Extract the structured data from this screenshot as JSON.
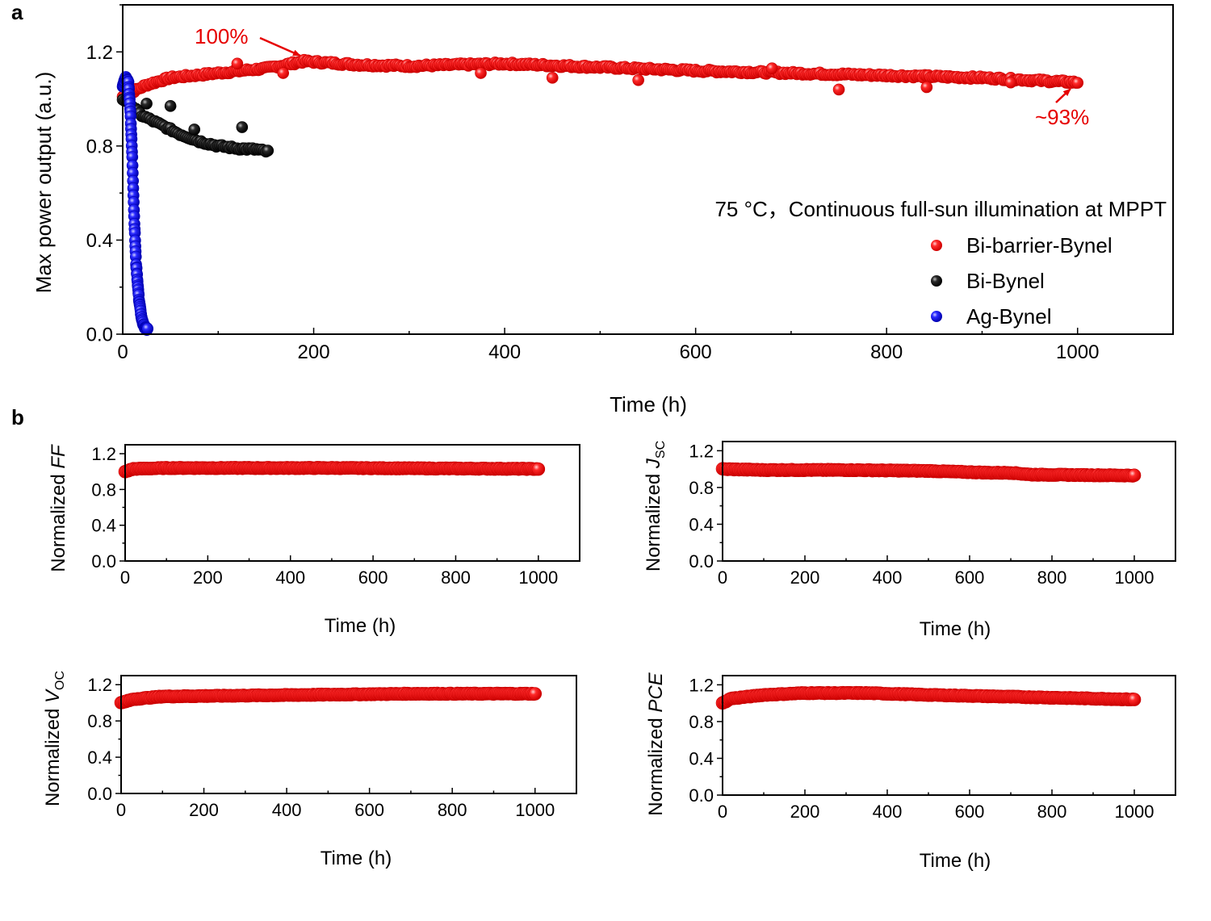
{
  "panel_labels": {
    "a": "a",
    "b": "b"
  },
  "colors": {
    "red": "#ff1a1a",
    "red_edge": "#c80000",
    "black": "#222222",
    "black_edge": "#000000",
    "blue": "#2a2af0",
    "blue_edge": "#0000b4",
    "annotation": "#e60000"
  },
  "chart_data": [
    {
      "id": "a",
      "type": "scatter",
      "xlabel": "Time (h)",
      "ylabel": "Max power output (a.u.)",
      "xlim": [
        0,
        1100
      ],
      "ylim": [
        0,
        1.4
      ],
      "xticks": [
        0,
        200,
        400,
        600,
        800,
        1000
      ],
      "yticks": [
        0.0,
        0.4,
        0.8,
        1.2
      ],
      "xtick_labels": [
        "0",
        "200",
        "400",
        "600",
        "800",
        "1000"
      ],
      "ytick_labels": [
        "0.0",
        "0.4",
        "0.8",
        "1.2"
      ],
      "condition_text": "75 °C，Continuous full-sun illumination at MPPT",
      "annotations": [
        {
          "text": "100%",
          "points_to": [
            190,
            1.16
          ]
        },
        {
          "text": "~93%",
          "points_to": [
            1000,
            1.07
          ]
        }
      ],
      "series": [
        {
          "name": "Bi-barrier-Bynel",
          "color": "red",
          "trend": [
            [
              0,
              1.01
            ],
            [
              10,
              1.03
            ],
            [
              25,
              1.06
            ],
            [
              50,
              1.09
            ],
            [
              100,
              1.11
            ],
            [
              150,
              1.13
            ],
            [
              190,
              1.16
            ],
            [
              250,
              1.145
            ],
            [
              300,
              1.14
            ],
            [
              400,
              1.15
            ],
            [
              500,
              1.135
            ],
            [
              600,
              1.12
            ],
            [
              700,
              1.11
            ],
            [
              800,
              1.1
            ],
            [
              900,
              1.09
            ],
            [
              1000,
              1.07
            ]
          ],
          "outliers": [
            [
              168,
              1.11
            ],
            [
              375,
              1.11
            ],
            [
              450,
              1.09
            ],
            [
              540,
              1.08
            ],
            [
              750,
              1.04
            ],
            [
              842,
              1.05
            ],
            [
              930,
              1.07
            ],
            [
              120,
              1.15
            ],
            [
              680,
              1.13
            ]
          ]
        },
        {
          "name": "Bi-Bynel",
          "color": "black",
          "trend": [
            [
              0,
              1.0
            ],
            [
              10,
              0.97
            ],
            [
              20,
              0.93
            ],
            [
              40,
              0.89
            ],
            [
              60,
              0.85
            ],
            [
              80,
              0.82
            ],
            [
              100,
              0.8
            ],
            [
              120,
              0.79
            ],
            [
              140,
              0.785
            ],
            [
              153,
              0.775
            ]
          ],
          "outliers": [
            [
              25,
              0.98
            ],
            [
              50,
              0.97
            ],
            [
              125,
              0.88
            ],
            [
              75,
              0.87
            ]
          ]
        },
        {
          "name": "Ag-Bynel",
          "color": "blue",
          "trend": [
            [
              0,
              1.05
            ],
            [
              3,
              1.09
            ],
            [
              6,
              1.07
            ],
            [
              8,
              0.95
            ],
            [
              10,
              0.75
            ],
            [
              12,
              0.5
            ],
            [
              14,
              0.3
            ],
            [
              17,
              0.15
            ],
            [
              20,
              0.06
            ],
            [
              23,
              0.03
            ],
            [
              26,
              0.02
            ]
          ],
          "outliers": []
        }
      ]
    },
    {
      "id": "b1",
      "type": "scatter",
      "xlabel": "Time (h)",
      "ylabel_prefix": "Normalized ",
      "ylabel_main": "FF",
      "ylabel_sub": "",
      "xlim": [
        0,
        1100
      ],
      "ylim": [
        0,
        1.3
      ],
      "xticks": [
        0,
        200,
        400,
        600,
        800,
        1000
      ],
      "yticks": [
        0.0,
        0.4,
        0.8,
        1.2
      ],
      "xtick_labels": [
        "0",
        "200",
        "400",
        "600",
        "800",
        "1000"
      ],
      "ytick_labels": [
        "0.0",
        "0.4",
        "0.8",
        "1.2"
      ],
      "series": [
        {
          "name": "FF",
          "color": "red",
          "trend": [
            [
              0,
              1.0
            ],
            [
              20,
              1.03
            ],
            [
              100,
              1.04
            ],
            [
              500,
              1.04
            ],
            [
              1000,
              1.03
            ]
          ]
        }
      ]
    },
    {
      "id": "b2",
      "type": "scatter",
      "xlabel": "Time (h)",
      "ylabel_prefix": "Normalized ",
      "ylabel_main": "J",
      "ylabel_sub": "SC",
      "xlim": [
        0,
        1100
      ],
      "ylim": [
        0,
        1.3
      ],
      "xticks": [
        0,
        200,
        400,
        600,
        800,
        1000
      ],
      "yticks": [
        0.0,
        0.4,
        0.8,
        1.2
      ],
      "xtick_labels": [
        "0",
        "200",
        "400",
        "600",
        "800",
        "1000"
      ],
      "ytick_labels": [
        "0.0",
        "0.4",
        "0.8",
        "1.2"
      ],
      "series": [
        {
          "name": "Jsc",
          "color": "red",
          "trend": [
            [
              0,
              1.0
            ],
            [
              100,
              0.99
            ],
            [
              300,
              0.99
            ],
            [
              500,
              0.98
            ],
            [
              650,
              0.96
            ],
            [
              700,
              0.96
            ],
            [
              750,
              0.94
            ],
            [
              1000,
              0.93
            ]
          ]
        }
      ]
    },
    {
      "id": "b3",
      "type": "scatter",
      "xlabel": "Time (h)",
      "ylabel_prefix": "Normalized ",
      "ylabel_main": "V",
      "ylabel_sub": "OC",
      "xlim": [
        0,
        1100
      ],
      "ylim": [
        0,
        1.3
      ],
      "xticks": [
        0,
        200,
        400,
        600,
        800,
        1000
      ],
      "yticks": [
        0.0,
        0.4,
        0.8,
        1.2
      ],
      "xtick_labels": [
        "0",
        "200",
        "400",
        "600",
        "800",
        "1000"
      ],
      "ytick_labels": [
        "0.0",
        "0.4",
        "0.8",
        "1.2"
      ],
      "series": [
        {
          "name": "Voc",
          "color": "red",
          "trend": [
            [
              0,
              1.0
            ],
            [
              30,
              1.04
            ],
            [
              100,
              1.07
            ],
            [
              300,
              1.08
            ],
            [
              500,
              1.09
            ],
            [
              700,
              1.1
            ],
            [
              1000,
              1.1
            ]
          ]
        }
      ]
    },
    {
      "id": "b4",
      "type": "scatter",
      "xlabel": "Time (h)",
      "ylabel_prefix": "Normalized ",
      "ylabel_main": "PCE",
      "ylabel_sub": "",
      "xlim": [
        0,
        1100
      ],
      "ylim": [
        0,
        1.3
      ],
      "xticks": [
        0,
        200,
        400,
        600,
        800,
        1000
      ],
      "yticks": [
        0.0,
        0.4,
        0.8,
        1.2
      ],
      "xtick_labels": [
        "0",
        "200",
        "400",
        "600",
        "800",
        "1000"
      ],
      "ytick_labels": [
        "0.0",
        "0.4",
        "0.8",
        "1.2"
      ],
      "series": [
        {
          "name": "PCE",
          "color": "red",
          "trend": [
            [
              0,
              1.0
            ],
            [
              20,
              1.05
            ],
            [
              100,
              1.09
            ],
            [
              200,
              1.11
            ],
            [
              350,
              1.11
            ],
            [
              500,
              1.09
            ],
            [
              700,
              1.07
            ],
            [
              1000,
              1.04
            ]
          ]
        }
      ]
    }
  ]
}
